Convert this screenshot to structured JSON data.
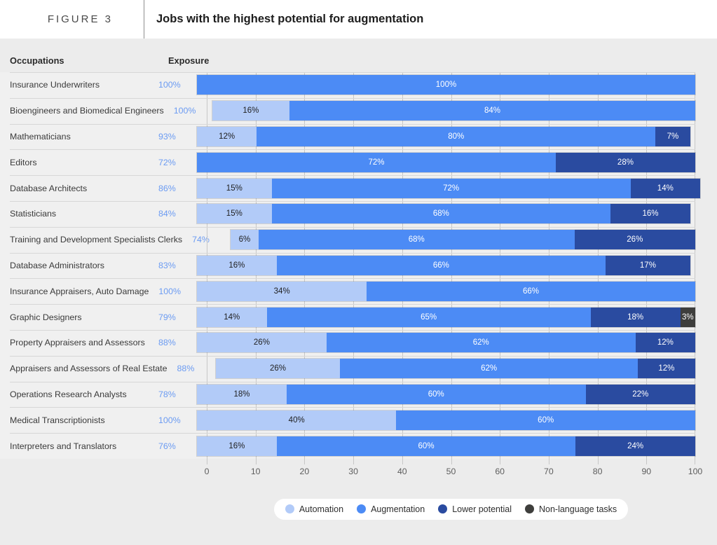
{
  "header": {
    "figure_label": "FIGURE 3",
    "title": "Jobs with the highest potential for augmentation"
  },
  "columns": {
    "occupations": "Occupations",
    "exposure": "Exposure"
  },
  "colors": {
    "page_background": "#ececec",
    "header_background": "#ffffff",
    "row_background": "#f0f0f0",
    "automation": "#b2cbf8",
    "augmentation": "#4c8bf5",
    "lower_potential": "#2a4ba0",
    "non_language": "#3e3e3c",
    "exposure_text": "#6b9bf2"
  },
  "chart_data": {
    "type": "bar",
    "orientation": "horizontal",
    "stacked": true,
    "title": "Jobs with the highest potential for augmentation",
    "xlabel": "",
    "ylabel": "",
    "xlim": [
      0,
      100
    ],
    "x_ticks": [
      0,
      10,
      20,
      30,
      40,
      50,
      60,
      70,
      80,
      90,
      100
    ],
    "grid": "vertical-ticks-between-bars",
    "legend_position": "bottom",
    "series_names": [
      "Automation",
      "Augmentation",
      "Lower potential",
      "Non-language tasks"
    ],
    "rows": [
      {
        "occupation": "Insurance Underwriters",
        "exposure": "100%",
        "values": [
          0,
          100,
          0,
          0
        ]
      },
      {
        "occupation": "Bioengineers and Biomedical Engineers",
        "exposure": "100%",
        "values": [
          16,
          84,
          0,
          0
        ]
      },
      {
        "occupation": "Mathematicians",
        "exposure": "93%",
        "values": [
          12,
          80,
          7,
          0
        ]
      },
      {
        "occupation": "Editors",
        "exposure": "72%",
        "values": [
          0,
          72,
          28,
          0
        ]
      },
      {
        "occupation": "Database Architects",
        "exposure": "86%",
        "values": [
          15,
          72,
          14,
          0
        ]
      },
      {
        "occupation": "Statisticians",
        "exposure": "84%",
        "values": [
          15,
          68,
          16,
          0
        ]
      },
      {
        "occupation": "Training and Development Specialists Clerks",
        "exposure": "74%",
        "values": [
          6,
          68,
          26,
          0
        ]
      },
      {
        "occupation": "Database Administrators",
        "exposure": "83%",
        "values": [
          16,
          66,
          17,
          0
        ]
      },
      {
        "occupation": "Insurance Appraisers, Auto Damage",
        "exposure": "100%",
        "values": [
          34,
          66,
          0,
          0
        ]
      },
      {
        "occupation": "Graphic Designers",
        "exposure": "79%",
        "values": [
          14,
          65,
          18,
          3
        ]
      },
      {
        "occupation": "Property Appraisers and Assessors",
        "exposure": "88%",
        "values": [
          26,
          62,
          12,
          0
        ]
      },
      {
        "occupation": "Appraisers and Assessors of Real Estate",
        "exposure": "88%",
        "values": [
          26,
          62,
          12,
          0
        ]
      },
      {
        "occupation": "Operations Research Analysts",
        "exposure": "78%",
        "values": [
          18,
          60,
          22,
          0
        ]
      },
      {
        "occupation": "Medical Transcriptionists",
        "exposure": "100%",
        "values": [
          40,
          60,
          0,
          0
        ]
      },
      {
        "occupation": "Interpreters and Translators",
        "exposure": "76%",
        "values": [
          16,
          60,
          24,
          0
        ]
      }
    ]
  },
  "legend": [
    {
      "label": "Automation",
      "color": "#b2cbf8"
    },
    {
      "label": "Augmentation",
      "color": "#4c8bf5"
    },
    {
      "label": "Lower potential",
      "color": "#2a4ba0"
    },
    {
      "label": "Non-language tasks",
      "color": "#3e3e3c"
    }
  ]
}
